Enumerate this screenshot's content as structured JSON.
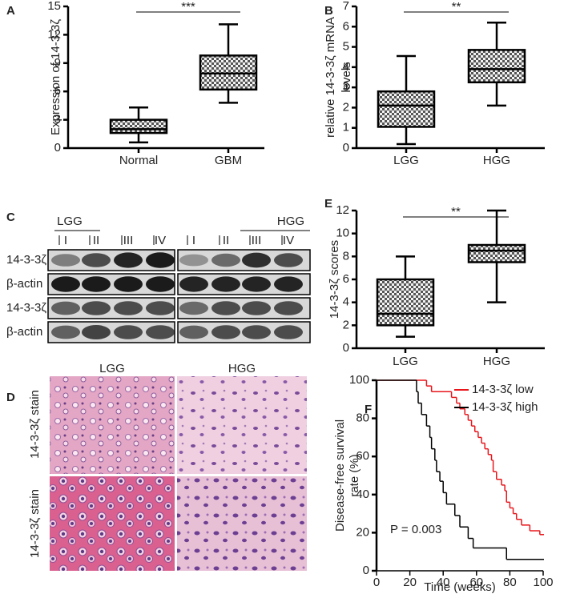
{
  "chart_data": [
    {
      "type": "box",
      "panel": "A",
      "ylabel": [
        "Expression of 14-3-3ζ"
      ],
      "categories": [
        "Normal",
        "GBM"
      ],
      "boxes": [
        {
          "min": 0.6,
          "q1": 1.6,
          "median": 2.0,
          "q3": 3.0,
          "max": 4.3
        },
        {
          "min": 4.8,
          "q1": 6.2,
          "median": 7.9,
          "q3": 9.8,
          "max": 13.1
        }
      ],
      "ylim": [
        0,
        15
      ],
      "yticks": [
        0,
        3,
        6,
        9,
        12,
        15
      ],
      "significance": "***"
    },
    {
      "type": "box",
      "panel": "B",
      "ylabel": [
        "relative 14-3-3ζ mRNA",
        "levels"
      ],
      "categories": [
        "LGG",
        "HGG"
      ],
      "boxes": [
        {
          "min": 0.2,
          "q1": 1.05,
          "median": 2.1,
          "q3": 2.8,
          "max": 4.55
        },
        {
          "min": 2.1,
          "q1": 3.25,
          "median": 3.9,
          "q3": 4.85,
          "max": 6.2
        }
      ],
      "ylim": [
        0,
        7
      ],
      "yticks": [
        0,
        1,
        2,
        3,
        4,
        5,
        6,
        7
      ],
      "significance": "**"
    },
    {
      "type": "box",
      "panel": "E",
      "ylabel": [
        "14-3-3ζ scores"
      ],
      "categories": [
        "LGG",
        "HGG"
      ],
      "boxes": [
        {
          "min": 1,
          "q1": 2,
          "median": 3,
          "q3": 6,
          "max": 8
        },
        {
          "min": 4,
          "q1": 7.5,
          "median": 8.5,
          "q3": 9,
          "max": 12
        }
      ],
      "ylim": [
        0,
        12
      ],
      "yticks": [
        0,
        2,
        4,
        6,
        8,
        10,
        12
      ],
      "significance": "**"
    },
    {
      "type": "step",
      "panel": "F",
      "ylabel": [
        "Disease-free survival",
        "rate (%)"
      ],
      "xlabel": "Time (weeks)",
      "xlim": [
        0,
        100
      ],
      "xticks": [
        0,
        20,
        40,
        60,
        80,
        100
      ],
      "ylim": [
        0,
        100
      ],
      "yticks": [
        0,
        20,
        40,
        60,
        80,
        100
      ],
      "annotation": "P = 0.003",
      "series": [
        {
          "name": "14-3-3ζ low",
          "color": "#e8161b",
          "x": [
            0,
            30,
            33,
            45,
            48,
            50,
            53,
            55,
            57,
            59,
            61,
            63,
            65,
            67,
            69,
            70,
            72,
            75,
            77,
            78,
            80,
            82,
            84,
            87,
            92,
            98,
            100
          ],
          "values": [
            100,
            97,
            94,
            91,
            88,
            85,
            82,
            79,
            76,
            73,
            70,
            67,
            64,
            61,
            58,
            52,
            48,
            45,
            42,
            36,
            33,
            30,
            27,
            24,
            21,
            19,
            19
          ]
        },
        {
          "name": "14-3-3ζ high",
          "color": "#000000",
          "x": [
            0,
            24,
            25,
            27,
            30,
            32,
            33,
            35,
            36,
            38,
            40,
            42,
            47,
            50,
            55,
            58,
            78,
            100
          ],
          "values": [
            100,
            94,
            88,
            82,
            76,
            70,
            64,
            58,
            52,
            47,
            41,
            35,
            29,
            23,
            17,
            12,
            6,
            6
          ]
        }
      ]
    }
  ],
  "blot": {
    "panel": "C",
    "groups": [
      "LGG",
      "HGG"
    ],
    "lanes": [
      [
        "I",
        "II",
        "III",
        "IV"
      ],
      [
        "I",
        "II",
        "III",
        "IV"
      ]
    ],
    "rows": [
      "14-3-3ζ",
      "β-actin",
      "14-3-3ζ",
      "β-actin"
    ]
  },
  "histology": {
    "panel": "D",
    "columns": [
      "LGG",
      "HGG"
    ],
    "rows": [
      "14-3-3ζ stain",
      "14-3-3ζ stain"
    ]
  }
}
